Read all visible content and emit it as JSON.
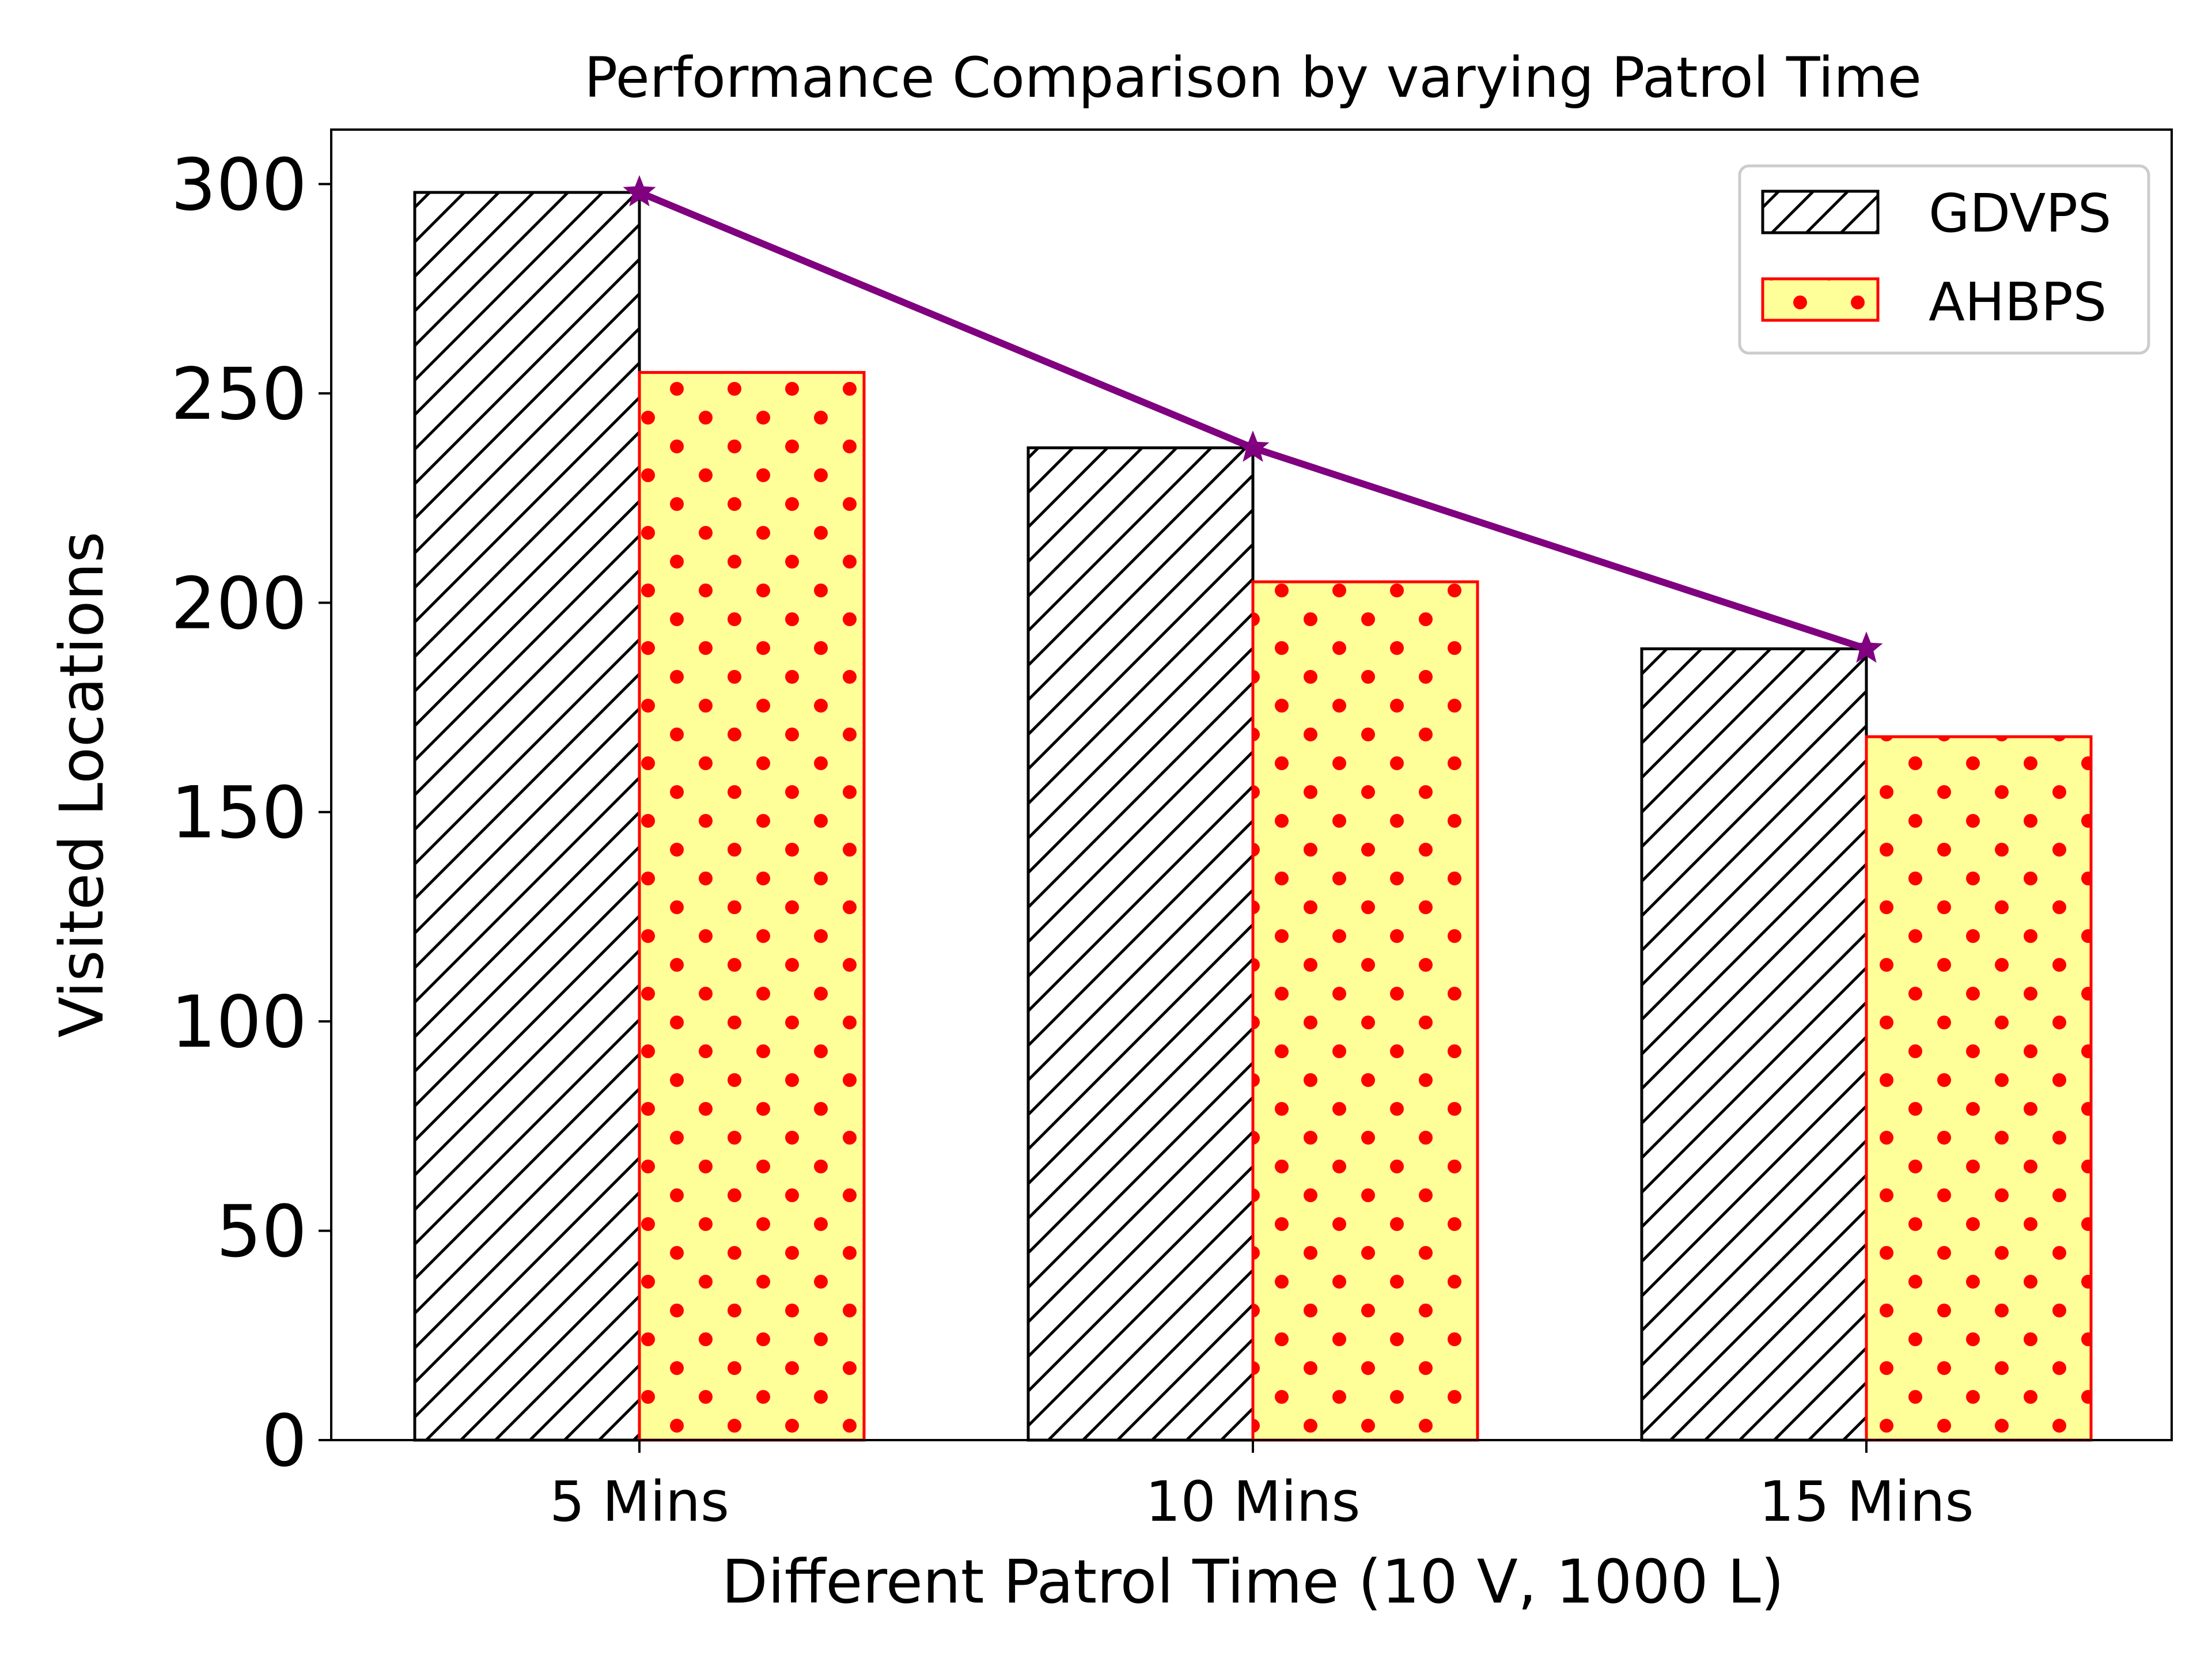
{
  "chart_data": {
    "type": "bar",
    "title": "Performance Comparison by varying Patrol Time",
    "xlabel": "Different Patrol Time (10 V, 1000 L)",
    "ylabel": "Visited Locations",
    "categories": [
      "5 Mins",
      "10 Mins",
      "15 Mins"
    ],
    "ylim": [
      0,
      313
    ],
    "yticks": [
      0,
      50,
      100,
      150,
      200,
      250,
      300
    ],
    "grid": false,
    "legend_position": "top-right",
    "series": [
      {
        "name": "GDVPS",
        "values": [
          298,
          237,
          189
        ],
        "fill_color": "#ffffff",
        "edge_color": "#000000",
        "pattern": "diagonal-hatch"
      },
      {
        "name": "AHBPS",
        "values": [
          255,
          205,
          168
        ],
        "fill_color": "#ffff99",
        "edge_color": "#ff0000",
        "pattern": "red-dots"
      }
    ],
    "trend_line": {
      "series": "GDVPS",
      "values": [
        298,
        237,
        189
      ],
      "color": "#800080",
      "marker": "star"
    }
  }
}
